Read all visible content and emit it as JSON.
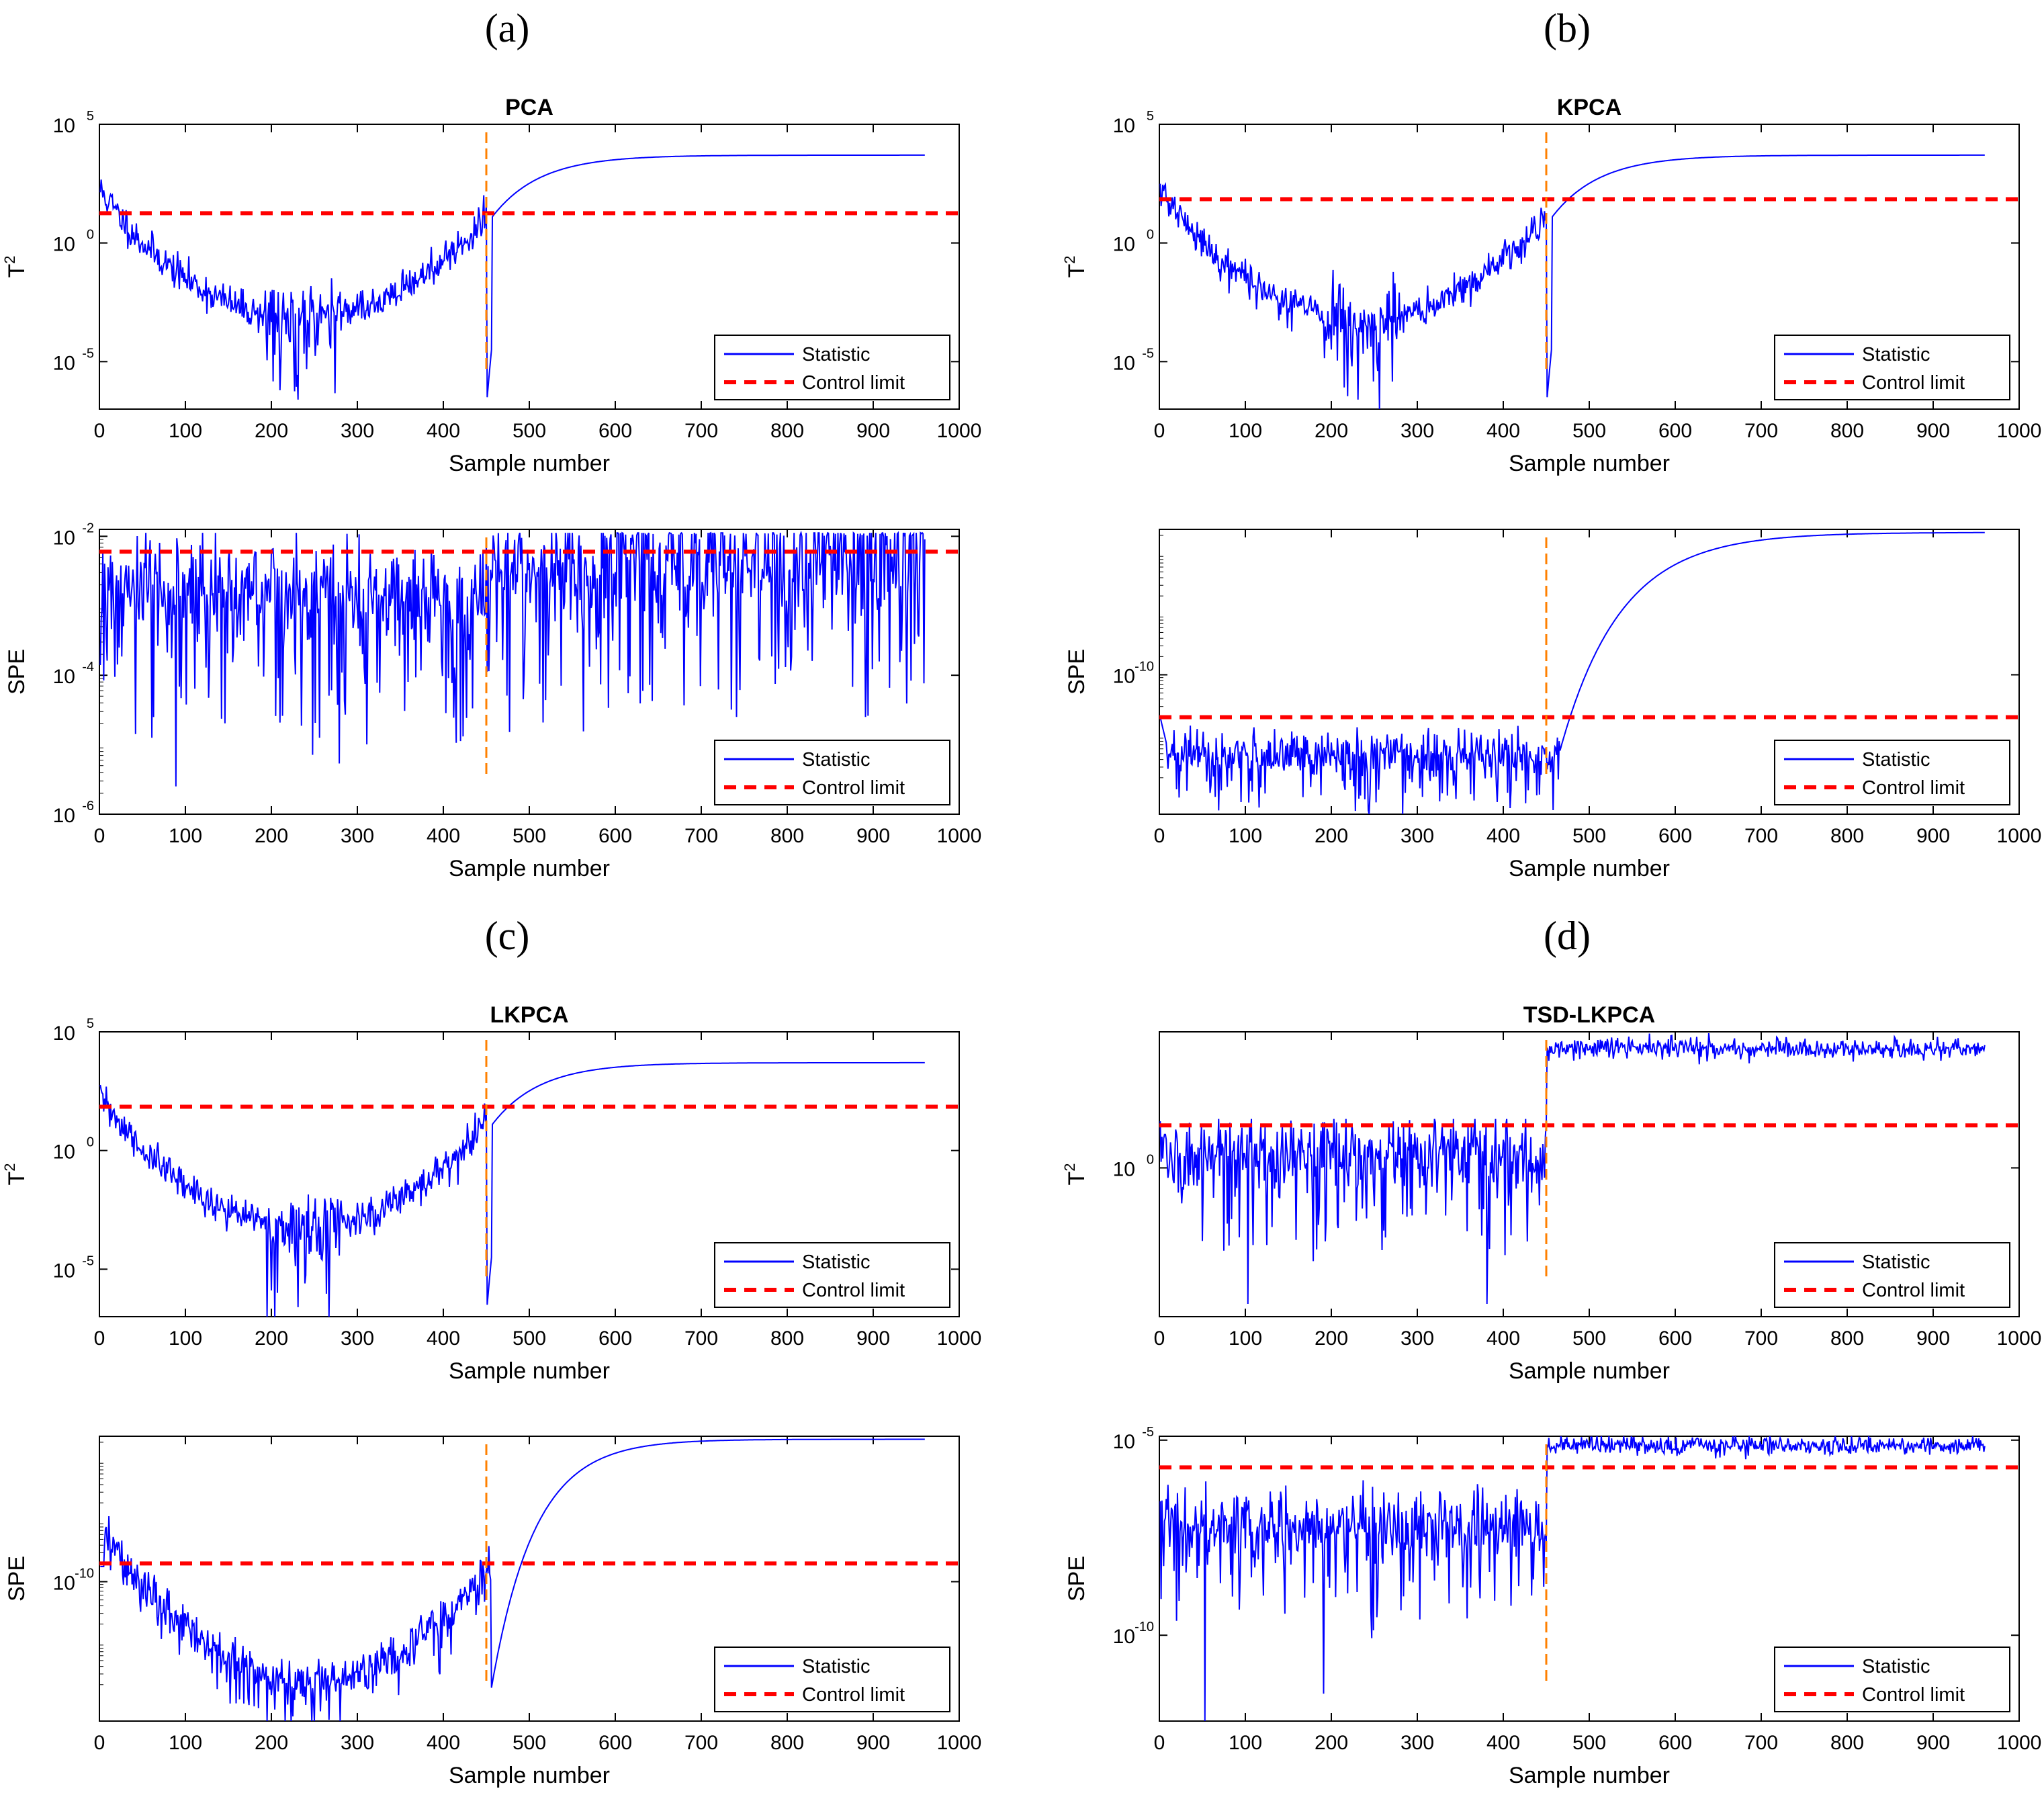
{
  "panel_labels": [
    "(a)",
    "(b)",
    "(c)",
    "(d)"
  ],
  "colors": {
    "statistic": "#0000ff",
    "control_limit": "#ff0000",
    "fault_marker": "#ff8000"
  },
  "chart_data": [
    {
      "panel": "(a)",
      "title": "PCA",
      "metric": "T2",
      "type": "line",
      "xlabel": "Sample number",
      "ylabel": "T",
      "ylabel_sup": "2",
      "xlim": [
        0,
        1000
      ],
      "xticks": [
        0,
        100,
        200,
        300,
        400,
        500,
        600,
        700,
        800,
        900,
        1000
      ],
      "yscale": "log",
      "ylim_log10": [
        -7,
        5
      ],
      "yticks": [
        {
          "base": "10",
          "exp": "5",
          "v": 5
        },
        {
          "base": "10",
          "exp": "0",
          "v": 0,
          "label": "10^0"
        },
        {
          "base": "10",
          "exp": "-5",
          "v": -5
        }
      ],
      "control_limit": 18,
      "fault_sample": 450,
      "series": [
        {
          "name": "Statistic",
          "n": 960,
          "profile": "t2_classic",
          "seed": 11
        },
        {
          "name": "Control limit"
        }
      ],
      "legend": [
        "Statistic",
        "Control limit"
      ]
    },
    {
      "panel": "(a)",
      "title": "",
      "metric": "SPE",
      "type": "line",
      "xlabel": "Sample number",
      "ylabel": "SPE",
      "ylabel_sup": "",
      "xlim": [
        0,
        1000
      ],
      "xticks": [
        0,
        100,
        200,
        300,
        400,
        500,
        600,
        700,
        800,
        900,
        1000
      ],
      "yscale": "log",
      "ylim_log10": [
        -6,
        -1.9
      ],
      "yticks": [
        {
          "base": "10",
          "exp": "-2",
          "v": -2
        },
        {
          "base": "10",
          "exp": "-4",
          "v": -4
        },
        {
          "base": "10",
          "exp": "-6",
          "v": -6
        }
      ],
      "control_limit": 0.006,
      "fault_sample": 450,
      "series": [
        {
          "name": "Statistic",
          "n": 960,
          "profile": "spe_pca",
          "seed": 12
        },
        {
          "name": "Control limit"
        }
      ],
      "legend": [
        "Statistic",
        "Control limit"
      ]
    },
    {
      "panel": "(b)",
      "title": "KPCA",
      "metric": "T2",
      "type": "line",
      "xlabel": "Sample number",
      "ylabel": "T",
      "ylabel_sup": "2",
      "xlim": [
        0,
        1000
      ],
      "xticks": [
        0,
        100,
        200,
        300,
        400,
        500,
        600,
        700,
        800,
        900,
        1000
      ],
      "yscale": "log",
      "ylim_log10": [
        -7,
        5
      ],
      "yticks": [
        {
          "base": "10",
          "exp": "5",
          "v": 5
        },
        {
          "base": "10",
          "exp": "0",
          "v": 0
        },
        {
          "base": "10",
          "exp": "-5",
          "v": -5
        }
      ],
      "control_limit": 70,
      "fault_sample": 450,
      "series": [
        {
          "name": "Statistic",
          "n": 960,
          "profile": "t2_classic",
          "seed": 21
        },
        {
          "name": "Control limit"
        }
      ],
      "legend": [
        "Statistic",
        "Control limit"
      ]
    },
    {
      "panel": "(b)",
      "title": "",
      "metric": "SPE",
      "type": "line",
      "xlabel": "Sample number",
      "ylabel": "SPE",
      "ylabel_sup": "",
      "xlim": [
        0,
        1000
      ],
      "xticks": [
        0,
        100,
        200,
        300,
        400,
        500,
        600,
        700,
        800,
        900,
        1000
      ],
      "yscale": "log",
      "ylim_log10": [
        -12.3,
        -7.6
      ],
      "yticks": [
        {
          "base": "10",
          "exp": "-10",
          "v": -10
        }
      ],
      "control_limit": 2e-11,
      "fault_sample": 450,
      "series": [
        {
          "name": "Statistic",
          "n": 960,
          "profile": "spe_kpca",
          "seed": 22
        },
        {
          "name": "Control limit"
        }
      ],
      "legend": [
        "Statistic",
        "Control limit"
      ]
    },
    {
      "panel": "(c)",
      "title": "LKPCA",
      "metric": "T2",
      "type": "line",
      "xlabel": "Sample number",
      "ylabel": "T",
      "ylabel_sup": "2",
      "xlim": [
        0,
        1000
      ],
      "xticks": [
        0,
        100,
        200,
        300,
        400,
        500,
        600,
        700,
        800,
        900,
        1000
      ],
      "yscale": "log",
      "ylim_log10": [
        -7,
        5
      ],
      "yticks": [
        {
          "base": "10",
          "exp": "5",
          "v": 5
        },
        {
          "base": "10",
          "exp": "0",
          "v": 0
        },
        {
          "base": "10",
          "exp": "-5",
          "v": -5
        }
      ],
      "control_limit": 70,
      "fault_sample": 450,
      "series": [
        {
          "name": "Statistic",
          "n": 960,
          "profile": "t2_classic",
          "seed": 31
        },
        {
          "name": "Control limit"
        }
      ],
      "legend": [
        "Statistic",
        "Control limit"
      ]
    },
    {
      "panel": "(c)",
      "title": "",
      "metric": "SPE",
      "type": "line",
      "xlabel": "Sample number",
      "ylabel": "SPE",
      "ylabel_sup": "",
      "xlim": [
        0,
        1000
      ],
      "xticks": [
        0,
        100,
        200,
        300,
        400,
        500,
        600,
        700,
        800,
        900,
        1000
      ],
      "yscale": "log",
      "ylim_log10": [
        -12.3,
        -7.6
      ],
      "yticks": [
        {
          "base": "10",
          "exp": "-10",
          "v": -10
        }
      ],
      "control_limit": 2e-10,
      "fault_sample": 450,
      "series": [
        {
          "name": "Statistic",
          "n": 960,
          "profile": "spe_lkpca",
          "seed": 32
        },
        {
          "name": "Control limit"
        }
      ],
      "legend": [
        "Statistic",
        "Control limit"
      ]
    },
    {
      "panel": "(d)",
      "title": "TSD-LKPCA",
      "metric": "T2",
      "type": "line",
      "xlabel": "Sample number",
      "ylabel": "T",
      "ylabel_sup": "2",
      "xlim": [
        0,
        1000
      ],
      "xticks": [
        0,
        100,
        200,
        300,
        400,
        500,
        600,
        700,
        800,
        900,
        1000
      ],
      "yscale": "log",
      "ylim_log10": [
        -3.5,
        3.2
      ],
      "yticks": [
        {
          "base": "10",
          "exp": "0",
          "v": 0
        }
      ],
      "control_limit": 10,
      "fault_sample": 450,
      "series": [
        {
          "name": "Statistic",
          "n": 960,
          "profile": "t2_tsd",
          "seed": 41
        },
        {
          "name": "Control limit"
        }
      ],
      "legend": [
        "Statistic",
        "Control limit"
      ]
    },
    {
      "panel": "(d)",
      "title": "",
      "metric": "SPE",
      "type": "line",
      "xlabel": "Sample number",
      "ylabel": "SPE",
      "ylabel_sup": "",
      "xlim": [
        0,
        1000
      ],
      "xticks": [
        0,
        100,
        200,
        300,
        400,
        500,
        600,
        700,
        800,
        900,
        1000
      ],
      "yscale": "log",
      "ylim_log10": [
        -12.2,
        -4.9
      ],
      "yticks": [
        {
          "base": "10",
          "exp": "-5",
          "v": -5
        },
        {
          "base": "10",
          "exp": "-10",
          "v": -10
        }
      ],
      "control_limit": 2e-06,
      "fault_sample": 450,
      "series": [
        {
          "name": "Statistic",
          "n": 960,
          "profile": "spe_tsd",
          "seed": 42
        },
        {
          "name": "Control limit"
        }
      ],
      "legend": [
        "Statistic",
        "Control limit"
      ]
    }
  ]
}
